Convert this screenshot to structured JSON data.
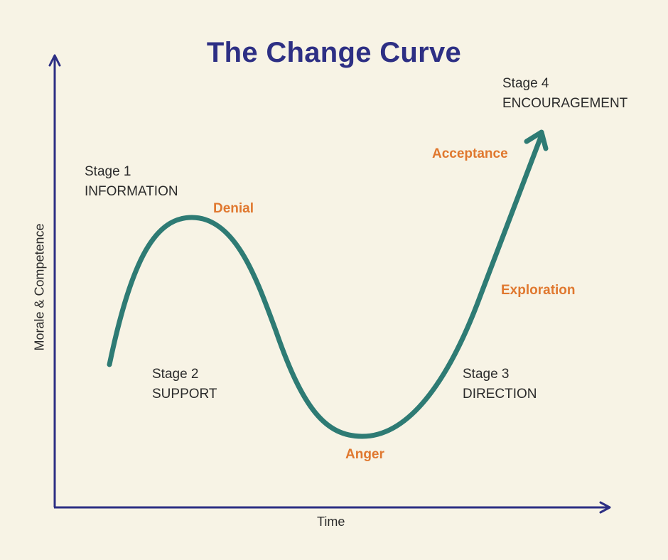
{
  "title": "The Change Curve",
  "colors": {
    "background": "#f7f3e5",
    "title": "#2d2f84",
    "axis": "#2d2f84",
    "curve": "#2e7b74",
    "emotion": "#e0782f",
    "text": "#2b2b2b"
  },
  "axes": {
    "y_label": "Morale & Competence",
    "x_label": "Time"
  },
  "stages": [
    {
      "line1": "Stage 1",
      "line2": "INFORMATION"
    },
    {
      "line1": "Stage 2",
      "line2": "SUPPORT"
    },
    {
      "line1": "Stage 3",
      "line2": "DIRECTION"
    },
    {
      "line1": "Stage 4",
      "line2": "ENCOURAGEMENT"
    }
  ],
  "emotions": [
    "Denial",
    "Anger",
    "Exploration",
    "Acceptance"
  ]
}
